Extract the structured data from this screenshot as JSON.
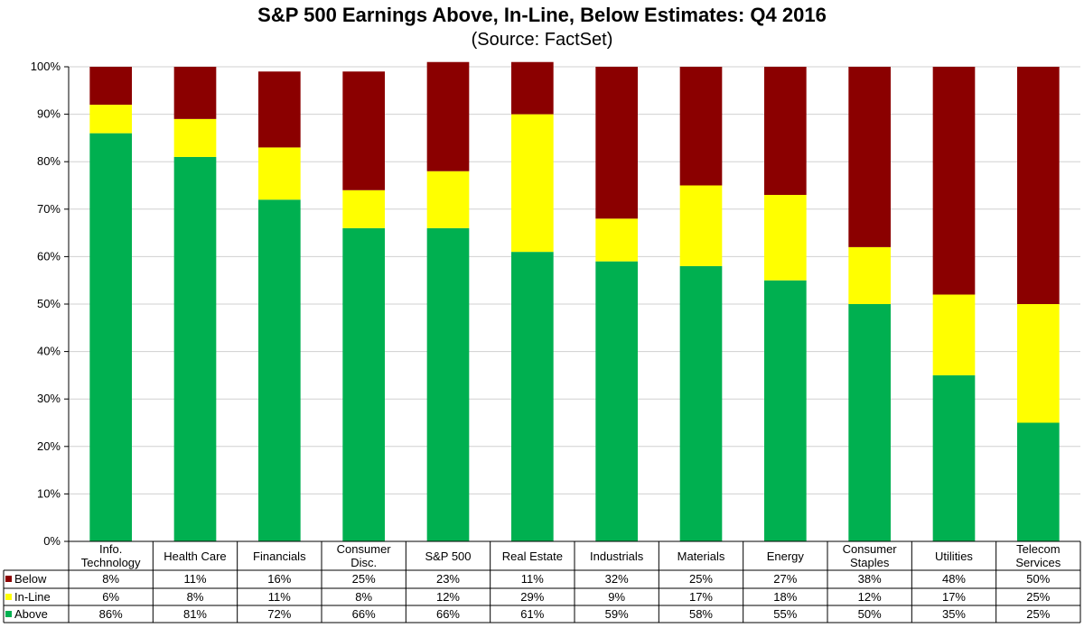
{
  "title": "S&P 500 Earnings Above, In-Line, Below Estimates: Q4 2016",
  "subtitle": "(Source: FactSet)",
  "colors": {
    "below": "#8b0000",
    "inline": "#ffff00",
    "above": "#00b050"
  },
  "chart_data": {
    "type": "bar",
    "stacked": true,
    "title": "S&P 500 Earnings Above, In-Line, Below Estimates: Q4 2016",
    "subtitle": "(Source: FactSet)",
    "xlabel": "",
    "ylabel": "",
    "ylim": [
      0,
      100
    ],
    "yticks": [
      "0%",
      "10%",
      "20%",
      "30%",
      "40%",
      "50%",
      "60%",
      "70%",
      "80%",
      "90%",
      "100%"
    ],
    "categories": [
      "Info. Technology",
      "Health Care",
      "Financials",
      "Consumer Disc.",
      "S&P 500",
      "Real Estate",
      "Industrials",
      "Materials",
      "Energy",
      "Consumer Staples",
      "Utilities",
      "Telecom Services"
    ],
    "series": [
      {
        "name": "Below",
        "values": [
          8,
          11,
          16,
          25,
          23,
          11,
          32,
          25,
          27,
          38,
          48,
          50
        ],
        "labels": [
          "8%",
          "11%",
          "16%",
          "25%",
          "23%",
          "11%",
          "32%",
          "25%",
          "27%",
          "38%",
          "48%",
          "50%"
        ]
      },
      {
        "name": "In-Line",
        "values": [
          6,
          8,
          11,
          8,
          12,
          29,
          9,
          17,
          18,
          12,
          17,
          25
        ],
        "labels": [
          "6%",
          "8%",
          "11%",
          "8%",
          "12%",
          "29%",
          "9%",
          "17%",
          "18%",
          "12%",
          "17%",
          "25%"
        ]
      },
      {
        "name": "Above",
        "values": [
          86,
          81,
          72,
          66,
          66,
          61,
          59,
          58,
          55,
          50,
          35,
          25
        ],
        "labels": [
          "86%",
          "81%",
          "72%",
          "66%",
          "66%",
          "61%",
          "59%",
          "58%",
          "55%",
          "50%",
          "35%",
          "25%"
        ]
      }
    ],
    "legend": "data-table-below-chart",
    "grid": true
  }
}
